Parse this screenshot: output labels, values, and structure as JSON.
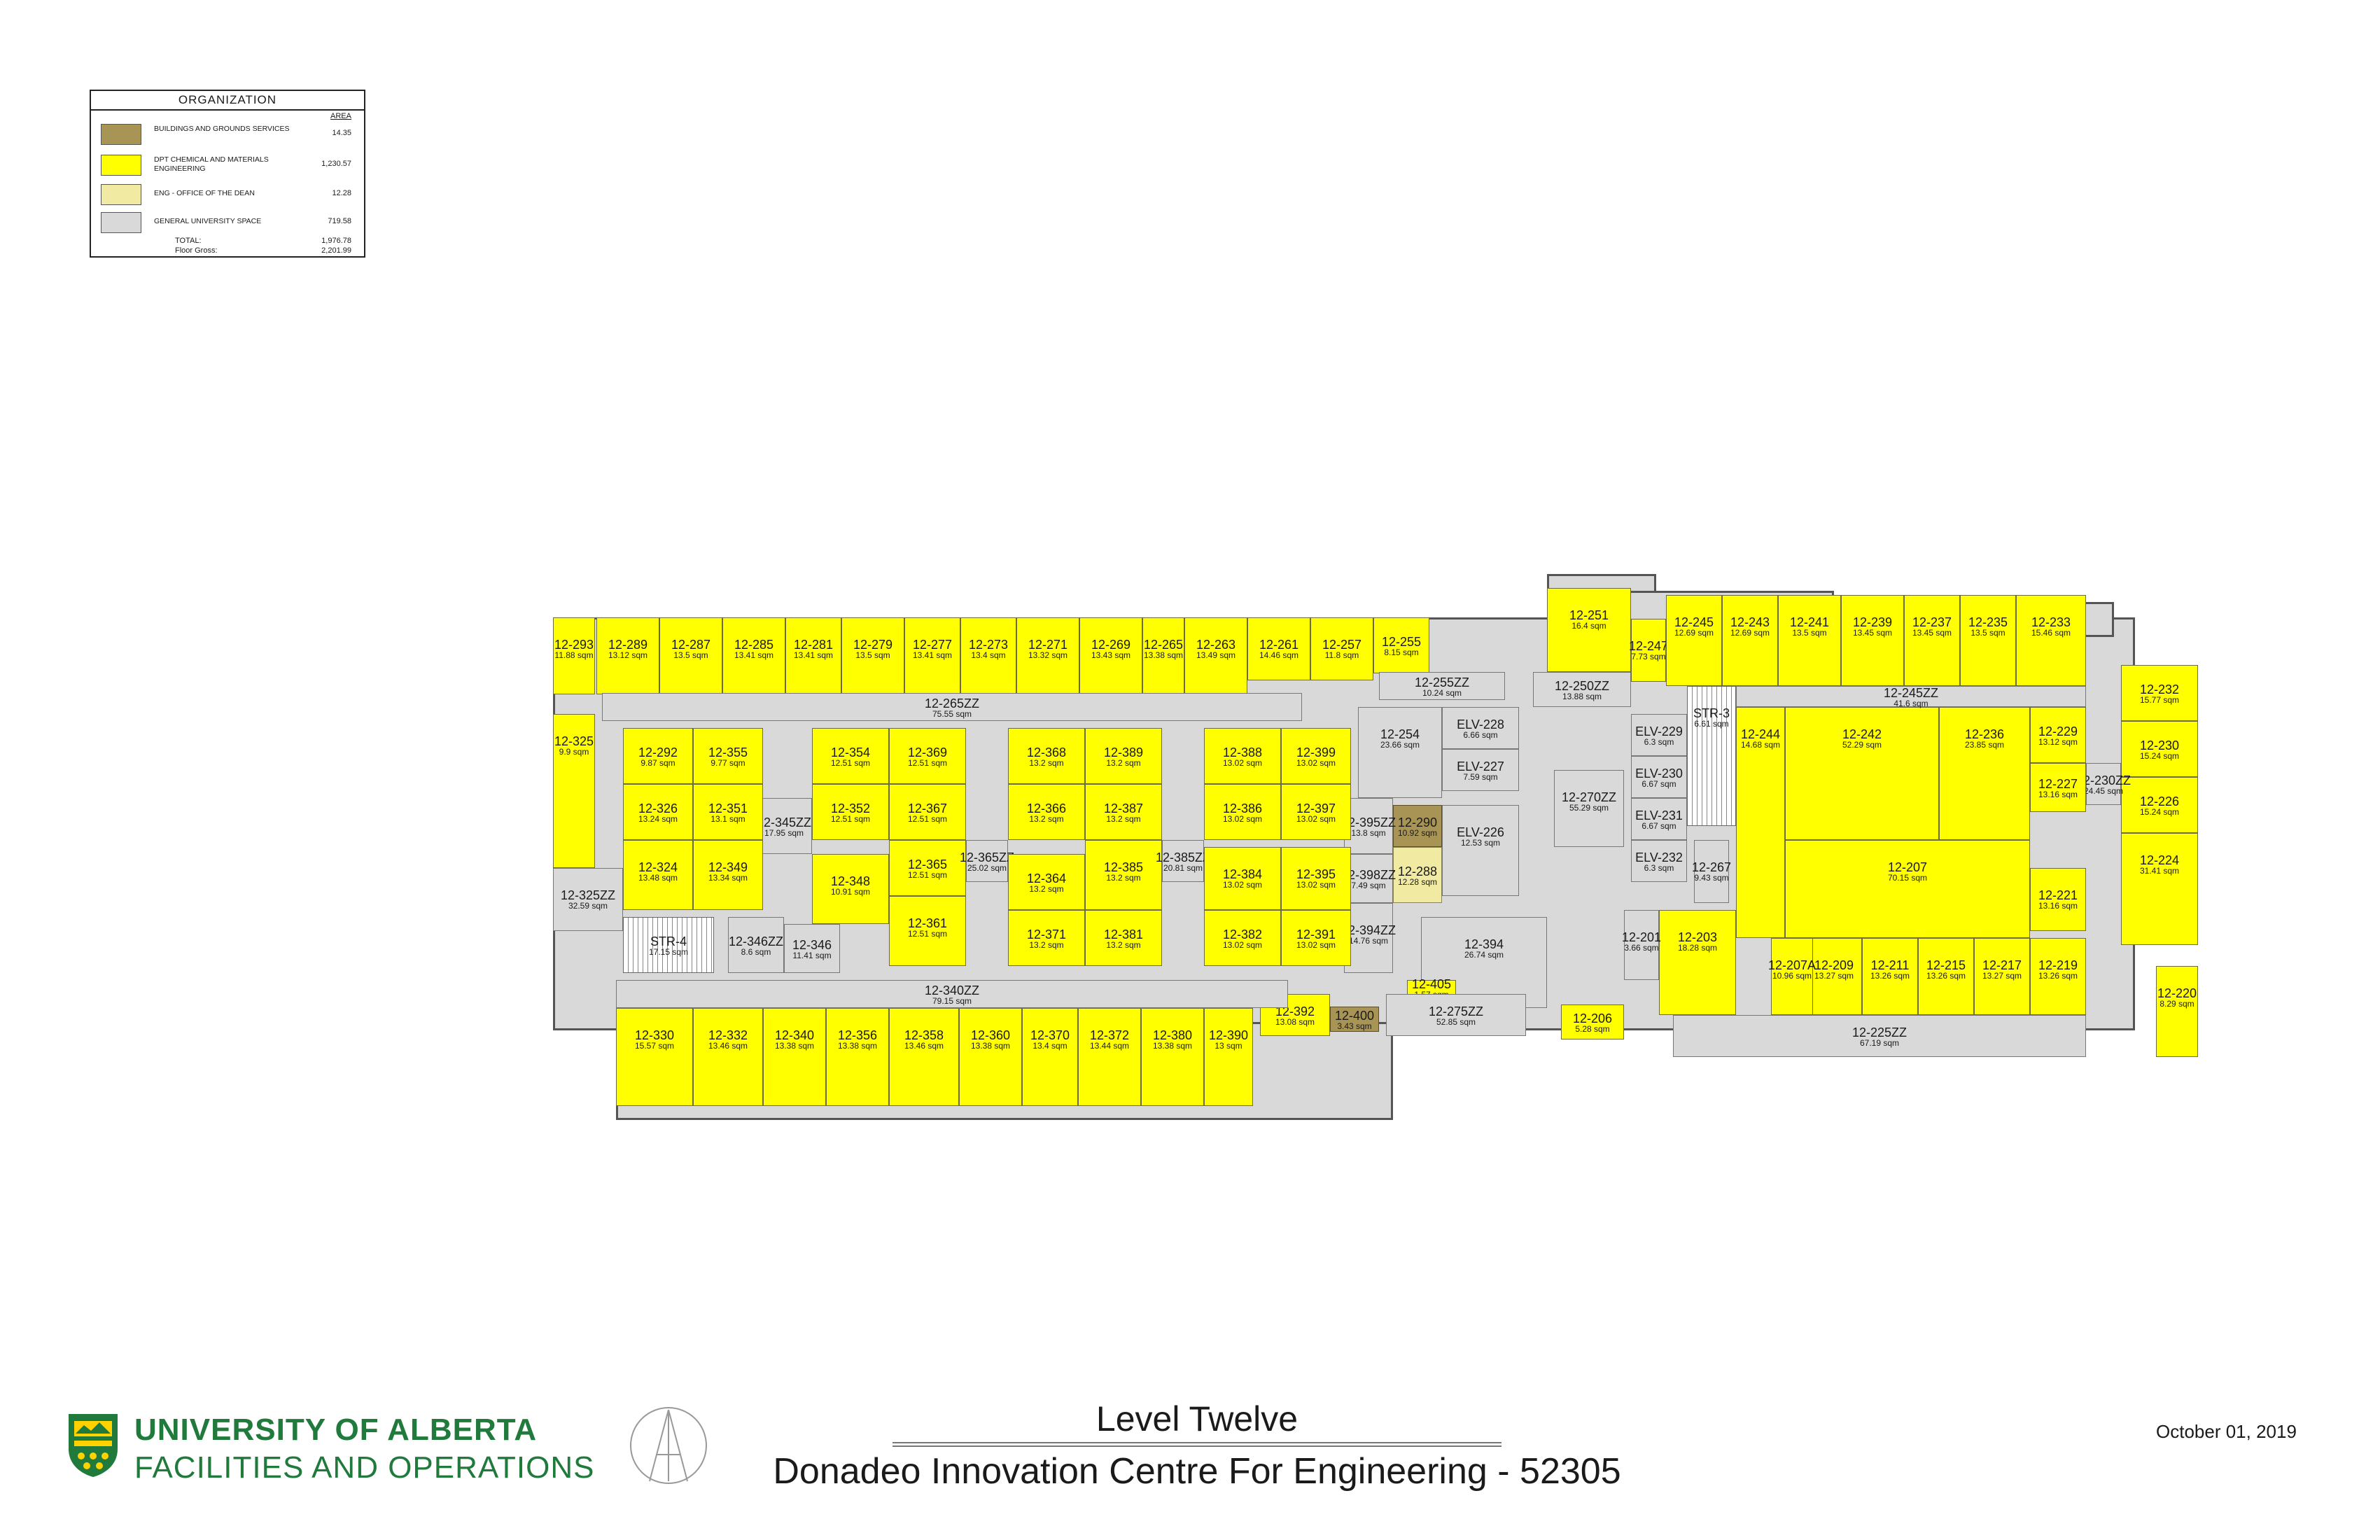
{
  "legend": {
    "title": "ORGANIZATION",
    "area_header": "AREA",
    "entries": [
      {
        "label": "BUILDINGS AND GROUNDS SERVICES",
        "area": "14.35",
        "color": "#a89455"
      },
      {
        "label": "DPT CHEMICAL AND MATERIALS ENGINEERING",
        "area": "1,230.57",
        "color": "#ffff00"
      },
      {
        "label": "ENG - OFFICE OF THE DEAN",
        "area": "12.28",
        "color": "#f0eaa2"
      },
      {
        "label": "GENERAL UNIVERSITY SPACE",
        "area": "719.58",
        "color": "#d9d9d9"
      }
    ],
    "total_label": "TOTAL:",
    "total_value": "1,976.78",
    "gross_label": "Floor Gross:",
    "gross_value": "2,201.99"
  },
  "plan": {
    "rooms": [
      {
        "id": "12-293",
        "area": "11.88 sqm"
      },
      {
        "id": "12-289",
        "area": "13.12 sqm"
      },
      {
        "id": "12-287",
        "area": "13.5 sqm"
      },
      {
        "id": "12-285",
        "area": "13.41 sqm"
      },
      {
        "id": "12-281",
        "area": "13.41 sqm"
      },
      {
        "id": "12-279",
        "area": "13.5 sqm"
      },
      {
        "id": "12-277",
        "area": "13.41 sqm"
      },
      {
        "id": "12-273",
        "area": "13.4 sqm"
      },
      {
        "id": "12-271",
        "area": "13.32 sqm"
      },
      {
        "id": "12-269",
        "area": "13.43 sqm"
      },
      {
        "id": "12-265",
        "area": "13.38 sqm"
      },
      {
        "id": "12-263",
        "area": "13.49 sqm"
      },
      {
        "id": "12-261",
        "area": "14.46 sqm"
      },
      {
        "id": "12-257",
        "area": "11.8 sqm"
      },
      {
        "id": "12-255",
        "area": "8.15 sqm"
      },
      {
        "id": "12-251",
        "area": "16.4 sqm"
      },
      {
        "id": "12-247",
        "area": "7.73 sqm"
      },
      {
        "id": "12-245",
        "area": "12.69 sqm"
      },
      {
        "id": "12-243",
        "area": "12.69 sqm"
      },
      {
        "id": "12-241",
        "area": "13.5 sqm"
      },
      {
        "id": "12-239",
        "area": "13.45 sqm"
      },
      {
        "id": "12-237",
        "area": "13.45 sqm"
      },
      {
        "id": "12-235",
        "area": "13.5 sqm"
      },
      {
        "id": "12-233",
        "area": "15.46 sqm"
      },
      {
        "id": "12-232",
        "area": "15.77 sqm"
      },
      {
        "id": "12-230",
        "area": "15.24 sqm"
      },
      {
        "id": "12-226",
        "area": "15.24 sqm"
      },
      {
        "id": "12-224",
        "area": "31.41 sqm"
      },
      {
        "id": "12-220",
        "area": "8.29 sqm"
      },
      {
        "id": "12-230ZZ",
        "area": "24.45 sqm"
      },
      {
        "id": "12-229",
        "area": "13.12 sqm"
      },
      {
        "id": "12-227",
        "area": "13.16 sqm"
      },
      {
        "id": "12-221",
        "area": "13.16 sqm"
      },
      {
        "id": "12-219",
        "area": "13.26 sqm"
      },
      {
        "id": "12-217",
        "area": "13.27 sqm"
      },
      {
        "id": "12-215",
        "area": "13.26 sqm"
      },
      {
        "id": "12-211",
        "area": "13.26 sqm"
      },
      {
        "id": "12-209",
        "area": "13.27 sqm"
      },
      {
        "id": "12-207A",
        "area": "10.96 sqm"
      },
      {
        "id": "12-207",
        "area": "70.15 sqm"
      },
      {
        "id": "12-236",
        "area": "23.85 sqm"
      },
      {
        "id": "12-242",
        "area": "52.29 sqm"
      },
      {
        "id": "12-244",
        "area": "14.68 sqm"
      },
      {
        "id": "12-245ZZ",
        "area": "41.6 sqm"
      },
      {
        "id": "12-225ZZ",
        "area": "67.19 sqm"
      },
      {
        "id": "12-203",
        "area": "18.28 sqm"
      },
      {
        "id": "12-201",
        "area": "3.66 sqm"
      },
      {
        "id": "12-206",
        "area": "5.28 sqm"
      },
      {
        "id": "12-267",
        "area": "9.43 sqm"
      },
      {
        "id": "STR-3",
        "area": "6.61 sqm"
      },
      {
        "id": "ELV-229",
        "area": "6.3 sqm"
      },
      {
        "id": "ELV-230",
        "area": "6.67 sqm"
      },
      {
        "id": "ELV-231",
        "area": "6.67 sqm"
      },
      {
        "id": "ELV-232",
        "area": "6.3 sqm"
      },
      {
        "id": "12-270ZZ",
        "area": "55.29 sqm"
      },
      {
        "id": "12-250ZZ",
        "area": "13.88 sqm"
      },
      {
        "id": "12-255ZZ",
        "area": "10.24 sqm"
      },
      {
        "id": "ELV-228",
        "area": "6.66 sqm"
      },
      {
        "id": "ELV-227",
        "area": "7.59 sqm"
      },
      {
        "id": "ELV-226",
        "area": "12.53 sqm"
      },
      {
        "id": "12-254",
        "area": "23.66 sqm"
      },
      {
        "id": "12-290",
        "area": "10.92 sqm"
      },
      {
        "id": "12-288",
        "area": "12.28 sqm"
      },
      {
        "id": "12-394",
        "area": "26.74 sqm"
      },
      {
        "id": "12-395ZZ",
        "area": "13.8 sqm"
      },
      {
        "id": "12-398ZZ",
        "area": "7.49 sqm"
      },
      {
        "id": "12-394ZZ",
        "area": "14.76 sqm"
      },
      {
        "id": "12-405",
        "area": "1.57 sqm"
      },
      {
        "id": "12-400",
        "area": "3.43 sqm"
      },
      {
        "id": "12-392",
        "area": "13.08 sqm"
      },
      {
        "id": "12-275ZZ",
        "area": "52.85 sqm"
      },
      {
        "id": "12-265ZZ",
        "area": "75.55 sqm"
      },
      {
        "id": "12-325",
        "area": "9.9 sqm"
      },
      {
        "id": "12-325ZZ",
        "area": "32.59 sqm"
      },
      {
        "id": "STR-4",
        "area": "17.15 sqm"
      },
      {
        "id": "12-346ZZ",
        "area": "8.6 sqm"
      },
      {
        "id": "12-346",
        "area": "11.41 sqm"
      },
      {
        "id": "12-345ZZ",
        "area": "17.95 sqm"
      },
      {
        "id": "12-292",
        "area": "9.87 sqm"
      },
      {
        "id": "12-355",
        "area": "9.77 sqm"
      },
      {
        "id": "12-326",
        "area": "13.24 sqm"
      },
      {
        "id": "12-351",
        "area": "13.1 sqm"
      },
      {
        "id": "12-324",
        "area": "13.48 sqm"
      },
      {
        "id": "12-349",
        "area": "13.34 sqm"
      },
      {
        "id": "12-354",
        "area": "12.51 sqm"
      },
      {
        "id": "12-369",
        "area": "12.51 sqm"
      },
      {
        "id": "12-352",
        "area": "12.51 sqm"
      },
      {
        "id": "12-367",
        "area": "12.51 sqm"
      },
      {
        "id": "12-365",
        "area": "12.51 sqm"
      },
      {
        "id": "12-348",
        "area": "10.91 sqm"
      },
      {
        "id": "12-361",
        "area": "12.51 sqm"
      },
      {
        "id": "12-365ZZ",
        "area": "25.02 sqm"
      },
      {
        "id": "12-368",
        "area": "13.2 sqm"
      },
      {
        "id": "12-389",
        "area": "13.2 sqm"
      },
      {
        "id": "12-366",
        "area": "13.2 sqm"
      },
      {
        "id": "12-387",
        "area": "13.2 sqm"
      },
      {
        "id": "12-364",
        "area": "13.2 sqm"
      },
      {
        "id": "12-385",
        "area": "13.2 sqm"
      },
      {
        "id": "12-371",
        "area": "13.2 sqm"
      },
      {
        "id": "12-381",
        "area": "13.2 sqm"
      },
      {
        "id": "12-385ZZ",
        "area": "20.81 sqm"
      },
      {
        "id": "12-388",
        "area": "13.02 sqm"
      },
      {
        "id": "12-399",
        "area": "13.02 sqm"
      },
      {
        "id": "12-386",
        "area": "13.02 sqm"
      },
      {
        "id": "12-397",
        "area": "13.02 sqm"
      },
      {
        "id": "12-384",
        "area": "13.02 sqm"
      },
      {
        "id": "12-395",
        "area": "13.02 sqm"
      },
      {
        "id": "12-382",
        "area": "13.02 sqm"
      },
      {
        "id": "12-391",
        "area": "13.02 sqm"
      },
      {
        "id": "12-340ZZ",
        "area": "79.15 sqm"
      },
      {
        "id": "12-330",
        "area": "15.57 sqm"
      },
      {
        "id": "12-332",
        "area": "13.46 sqm"
      },
      {
        "id": "12-340",
        "area": "13.38 sqm"
      },
      {
        "id": "12-356",
        "area": "13.38 sqm"
      },
      {
        "id": "12-358",
        "area": "13.46 sqm"
      },
      {
        "id": "12-360",
        "area": "13.38 sqm"
      },
      {
        "id": "12-370",
        "area": "13.4 sqm"
      },
      {
        "id": "12-372",
        "area": "13.44 sqm"
      },
      {
        "id": "12-380",
        "area": "13.38 sqm"
      },
      {
        "id": "12-390",
        "area": "13 sqm"
      }
    ]
  },
  "title_block": {
    "org_line1": "UNIVERSITY OF ALBERTA",
    "org_line2": "FACILITIES AND OPERATIONS",
    "level": "Level Twelve",
    "building": "Donadeo Innovation Centre For Engineering - 52305",
    "date": "October 01, 2019",
    "brand_color": "#1f7a3b"
  }
}
